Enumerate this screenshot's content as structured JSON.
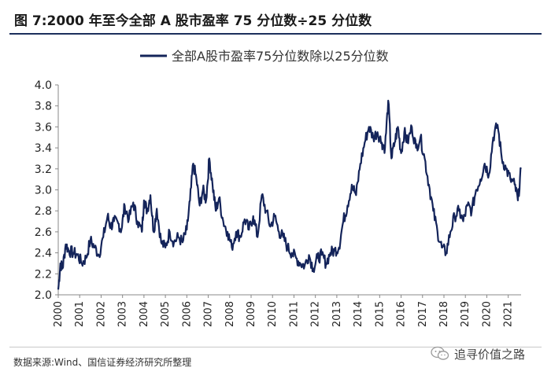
{
  "header": {
    "title": "图 7:2000 年至今全部 A 股市盈率 75 分位数÷25 分位数"
  },
  "footer": {
    "source": "数据来源:Wind、国信证券经济研究所整理",
    "watermark": "追寻价值之路",
    "watermark_icon": "wechat-icon"
  },
  "colors": {
    "line": "#14245a",
    "title_rule": "#1c2f5c",
    "axis": "#888888"
  },
  "chart_data": {
    "type": "line",
    "title": "",
    "xlabel": "",
    "ylabel": "",
    "ylim": [
      2.0,
      4.0
    ],
    "yticks": [
      "2.0",
      "2.2",
      "2.4",
      "2.6",
      "2.8",
      "3.0",
      "3.2",
      "3.4",
      "3.6",
      "3.8",
      "4.0"
    ],
    "xticks": [
      "2000",
      "2001",
      "2002",
      "2003",
      "2004",
      "2005",
      "2006",
      "2007",
      "2008",
      "2009",
      "2010",
      "2011",
      "2012",
      "2013",
      "2014",
      "2015",
      "2016",
      "2017",
      "2018",
      "2019",
      "2020",
      "2021"
    ],
    "xlim": [
      2000.0,
      2021.6
    ],
    "grid": false,
    "legend_position": "top-center",
    "series": [
      {
        "name": "全部A股市盈率75分位数除以25分位数",
        "x": [
          2000.0,
          2000.1,
          2000.2,
          2000.35,
          2000.5,
          2000.7,
          2000.9,
          2001.1,
          2001.3,
          2001.5,
          2001.7,
          2001.9,
          2002.1,
          2002.3,
          2002.45,
          2002.6,
          2002.8,
          2002.95,
          2003.1,
          2003.3,
          2003.5,
          2003.7,
          2003.9,
          2004.0,
          2004.15,
          2004.3,
          2004.45,
          2004.6,
          2004.8,
          2005.0,
          2005.2,
          2005.4,
          2005.6,
          2005.8,
          2006.0,
          2006.15,
          2006.3,
          2006.45,
          2006.6,
          2006.75,
          2006.9,
          2007.05,
          2007.2,
          2007.35,
          2007.5,
          2007.7,
          2007.9,
          2008.1,
          2008.3,
          2008.5,
          2008.7,
          2008.9,
          2009.1,
          2009.3,
          2009.5,
          2009.7,
          2009.9,
          2010.1,
          2010.3,
          2010.5,
          2010.7,
          2010.9,
          2011.1,
          2011.3,
          2011.5,
          2011.7,
          2011.9,
          2012.1,
          2012.3,
          2012.5,
          2012.7,
          2012.9,
          2013.1,
          2013.3,
          2013.5,
          2013.7,
          2013.9,
          2014.1,
          2014.3,
          2014.5,
          2014.7,
          2014.9,
          2015.1,
          2015.25,
          2015.4,
          2015.55,
          2015.7,
          2015.85,
          2016.0,
          2016.15,
          2016.3,
          2016.5,
          2016.7,
          2016.9,
          2017.1,
          2017.3,
          2017.5,
          2017.7,
          2017.9,
          2018.1,
          2018.3,
          2018.5,
          2018.7,
          2018.9,
          2019.1,
          2019.3,
          2019.5,
          2019.7,
          2019.9,
          2020.1,
          2020.3,
          2020.5,
          2020.7,
          2020.9,
          2021.1,
          2021.3,
          2021.45,
          2021.6
        ],
        "values": [
          2.05,
          2.3,
          2.25,
          2.48,
          2.42,
          2.4,
          2.38,
          2.3,
          2.35,
          2.52,
          2.45,
          2.38,
          2.55,
          2.75,
          2.65,
          2.7,
          2.68,
          2.62,
          2.85,
          2.72,
          2.88,
          2.7,
          2.6,
          2.9,
          2.8,
          2.95,
          2.6,
          2.82,
          2.5,
          2.45,
          2.6,
          2.5,
          2.55,
          2.5,
          2.62,
          2.9,
          3.25,
          3.1,
          2.85,
          3.0,
          2.9,
          3.3,
          3.05,
          2.8,
          2.92,
          2.7,
          2.6,
          2.45,
          2.6,
          2.55,
          2.72,
          2.62,
          2.75,
          2.55,
          2.95,
          2.8,
          2.65,
          2.75,
          2.6,
          2.55,
          2.45,
          2.4,
          2.35,
          2.3,
          2.28,
          2.38,
          2.25,
          2.35,
          2.38,
          2.3,
          2.4,
          2.42,
          2.45,
          2.7,
          2.85,
          3.05,
          2.95,
          3.25,
          3.45,
          3.6,
          3.5,
          3.55,
          3.45,
          3.4,
          3.85,
          3.3,
          3.45,
          3.6,
          3.35,
          3.55,
          3.45,
          3.6,
          3.4,
          3.5,
          3.3,
          3.05,
          2.8,
          2.6,
          2.45,
          2.4,
          2.6,
          2.75,
          2.8,
          2.7,
          2.85,
          2.8,
          3.0,
          3.1,
          3.25,
          3.15,
          3.5,
          3.62,
          3.3,
          3.2,
          3.1,
          3.05,
          2.9,
          3.2
        ]
      }
    ]
  }
}
